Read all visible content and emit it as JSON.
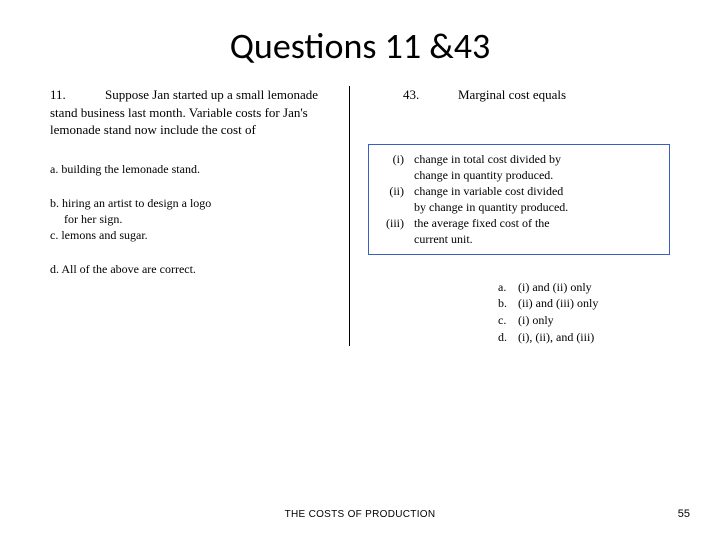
{
  "title": "Questions 11 &43",
  "q11": {
    "num": "11.",
    "prompt": "Suppose Jan started up a small lemonade stand business last month. Variable costs for Jan's lemonade stand now include the cost of",
    "options": {
      "a": "a. building the lemonade stand.",
      "b1": "b. hiring an artist to design a logo",
      "b2": "for her sign.",
      "c": "c. lemons and sugar.",
      "d": "d. All of the above are correct."
    }
  },
  "q43": {
    "num": "43.",
    "prompt": "Marginal cost equals",
    "romans": {
      "i": "(i)",
      "ii": "(ii)",
      "iii": "(iii)"
    },
    "defs": {
      "i1": "change in total cost divided by",
      "i2": "change in quantity produced.",
      "ii1": "change in variable cost divided",
      "ii2": "by change in quantity produced.",
      "iii1": "the average fixed cost of the",
      "iii2": "current unit."
    },
    "answers": {
      "a_l": "a.",
      "a_t": "(i) and (ii) only",
      "b_l": "b.",
      "b_t": "(ii) and (iii) only",
      "c_l": "c.",
      "c_t": "(i) only",
      "d_l": "d.",
      "d_t": "(i), (ii), and (iii)"
    }
  },
  "footer": "THE COSTS OF PRODUCTION",
  "page": "55",
  "colors": {
    "box_border": "#3a5fbf",
    "bg": "#ffffff",
    "text": "#000000"
  }
}
